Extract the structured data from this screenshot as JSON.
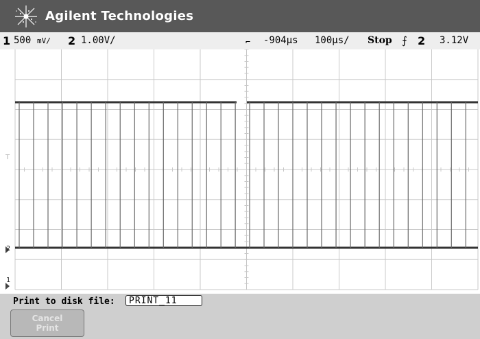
{
  "header": {
    "brand": "Agilent Technologies"
  },
  "status": {
    "ch1_num": "1",
    "ch1_scale": "500",
    "ch1_unit": "mV/",
    "ch2_num": "2",
    "ch2_scale": "1.00V/",
    "trigger_marker": "⌐",
    "time_delay": "-904µs",
    "time_scale": "100µs/",
    "run_state": "Stop",
    "trigger_edge": "⨍",
    "trigger_channel": "2",
    "trigger_level": "3.12V"
  },
  "markers": {
    "trig_level": "T",
    "ch2": "2",
    "ch1": "1"
  },
  "softkeys": {
    "print_label": "Print to disk file:",
    "print_file": "PRINT_11",
    "cancel_line1": "Cancel",
    "cancel_line2": "Print"
  },
  "waveform": {
    "dense_pulse_count": 30,
    "fading_pulse_count": 27,
    "colors": {
      "grid": "#c8c8c8",
      "trace": "#333333",
      "pulse": "#6a6a6a"
    }
  }
}
